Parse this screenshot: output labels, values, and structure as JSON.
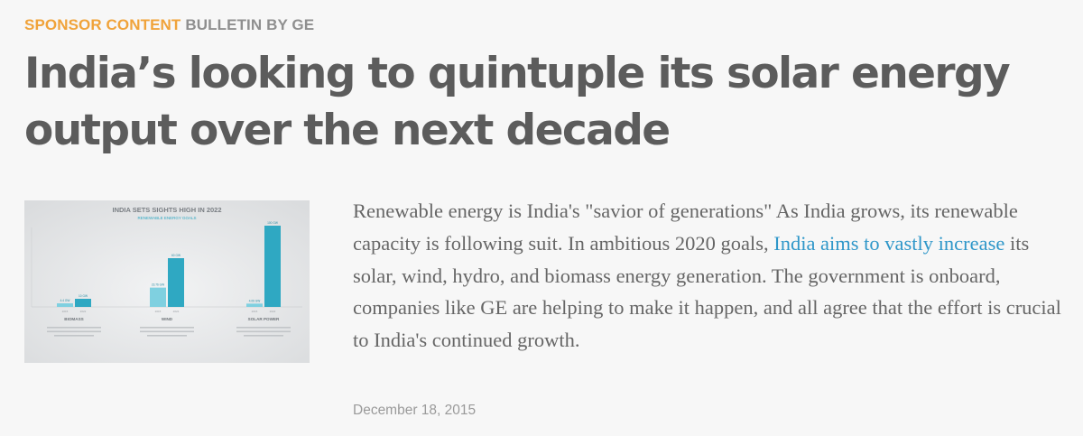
{
  "kicker": {
    "sponsor_label": "SPONSOR CONTENT",
    "bulletin_label": "BULLETIN BY GE"
  },
  "headline": "India’s looking to quintuple its solar energy output over the next decade",
  "thumbnail": {
    "title": "INDIA SETS SIGHTS HIGH IN 2022",
    "subtitle": "RENEWABLE ENERGY GOALS",
    "groups": [
      {
        "label": "BIOMASS",
        "bars": [
          {
            "label": "4.4 GW",
            "year": "2015",
            "value": 4.4
          },
          {
            "label": "10 GW",
            "year": "2022",
            "value": 10
          }
        ]
      },
      {
        "label": "WIND",
        "bars": [
          {
            "label": "23.76 GW",
            "year": "2015",
            "value": 23.76
          },
          {
            "label": "60 GW",
            "year": "2022",
            "value": 60
          }
        ]
      },
      {
        "label": "SOLAR POWER",
        "bars": [
          {
            "label": "4.06 GW",
            "year": "2015",
            "value": 4.06
          },
          {
            "label": "100 GW",
            "year": "2022",
            "value": 100
          }
        ]
      }
    ],
    "colors": {
      "bar_2015": "#7fd0e0",
      "bar_2022": "#2fa8c2",
      "background": "#e3e5e7"
    }
  },
  "body": {
    "text_before_link": "Renewable energy is India's \"savior of generations\" As India grows, its renewable capacity is following suit. In ambitious 2020 goals, ",
    "link_text": "India aims to vastly increase",
    "text_after_link": " its solar, wind, hydro, and biomass energy generation. The government is onboard, companies like GE are helping to make it happen, and all agree that the effort is crucial to India's continued growth."
  },
  "date": "December 18, 2015",
  "colors": {
    "sponsor": "#f0a33a",
    "bulletin": "#8f8f8f",
    "headline": "#5c5c5c",
    "body": "#666666",
    "link": "#2f97c9",
    "date": "#9a9a9a",
    "background": "#f7f7f7"
  }
}
